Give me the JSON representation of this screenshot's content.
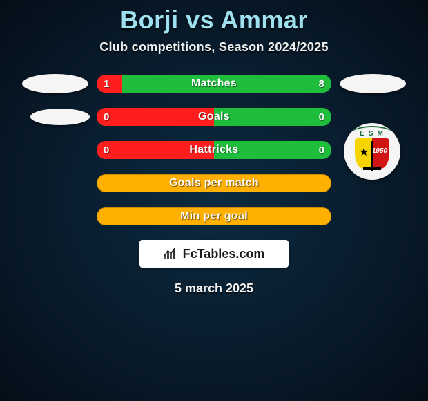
{
  "title": "Borji vs Ammar",
  "subtitle": "Club competitions, Season 2024/2025",
  "date": "5 march 2025",
  "fctables_label": "FcTables.com",
  "left_player": {
    "kind": "oval"
  },
  "right_player": {
    "kind": "club",
    "initials": "ESM",
    "year": "1950",
    "colors_left": "#f5d400",
    "colors_right": "#d11515"
  },
  "colors": {
    "left_fill": "#ff1e1e",
    "right_fill": "#1ebd3c",
    "neutral_fill": "#ffb000",
    "background": "#0a2238"
  },
  "bars": [
    {
      "label": "Matches",
      "left": "1",
      "right": "8",
      "left_pct": 11,
      "right_pct": 89,
      "style": "split"
    },
    {
      "label": "Goals",
      "left": "0",
      "right": "0",
      "left_pct": 50,
      "right_pct": 50,
      "style": "split"
    },
    {
      "label": "Hattricks",
      "left": "0",
      "right": "0",
      "left_pct": 50,
      "right_pct": 50,
      "style": "split"
    },
    {
      "label": "Goals per match",
      "left": "",
      "right": "",
      "left_pct": 0,
      "right_pct": 0,
      "style": "neutral"
    },
    {
      "label": "Min per goal",
      "left": "",
      "right": "",
      "left_pct": 0,
      "right_pct": 0,
      "style": "neutral"
    }
  ]
}
